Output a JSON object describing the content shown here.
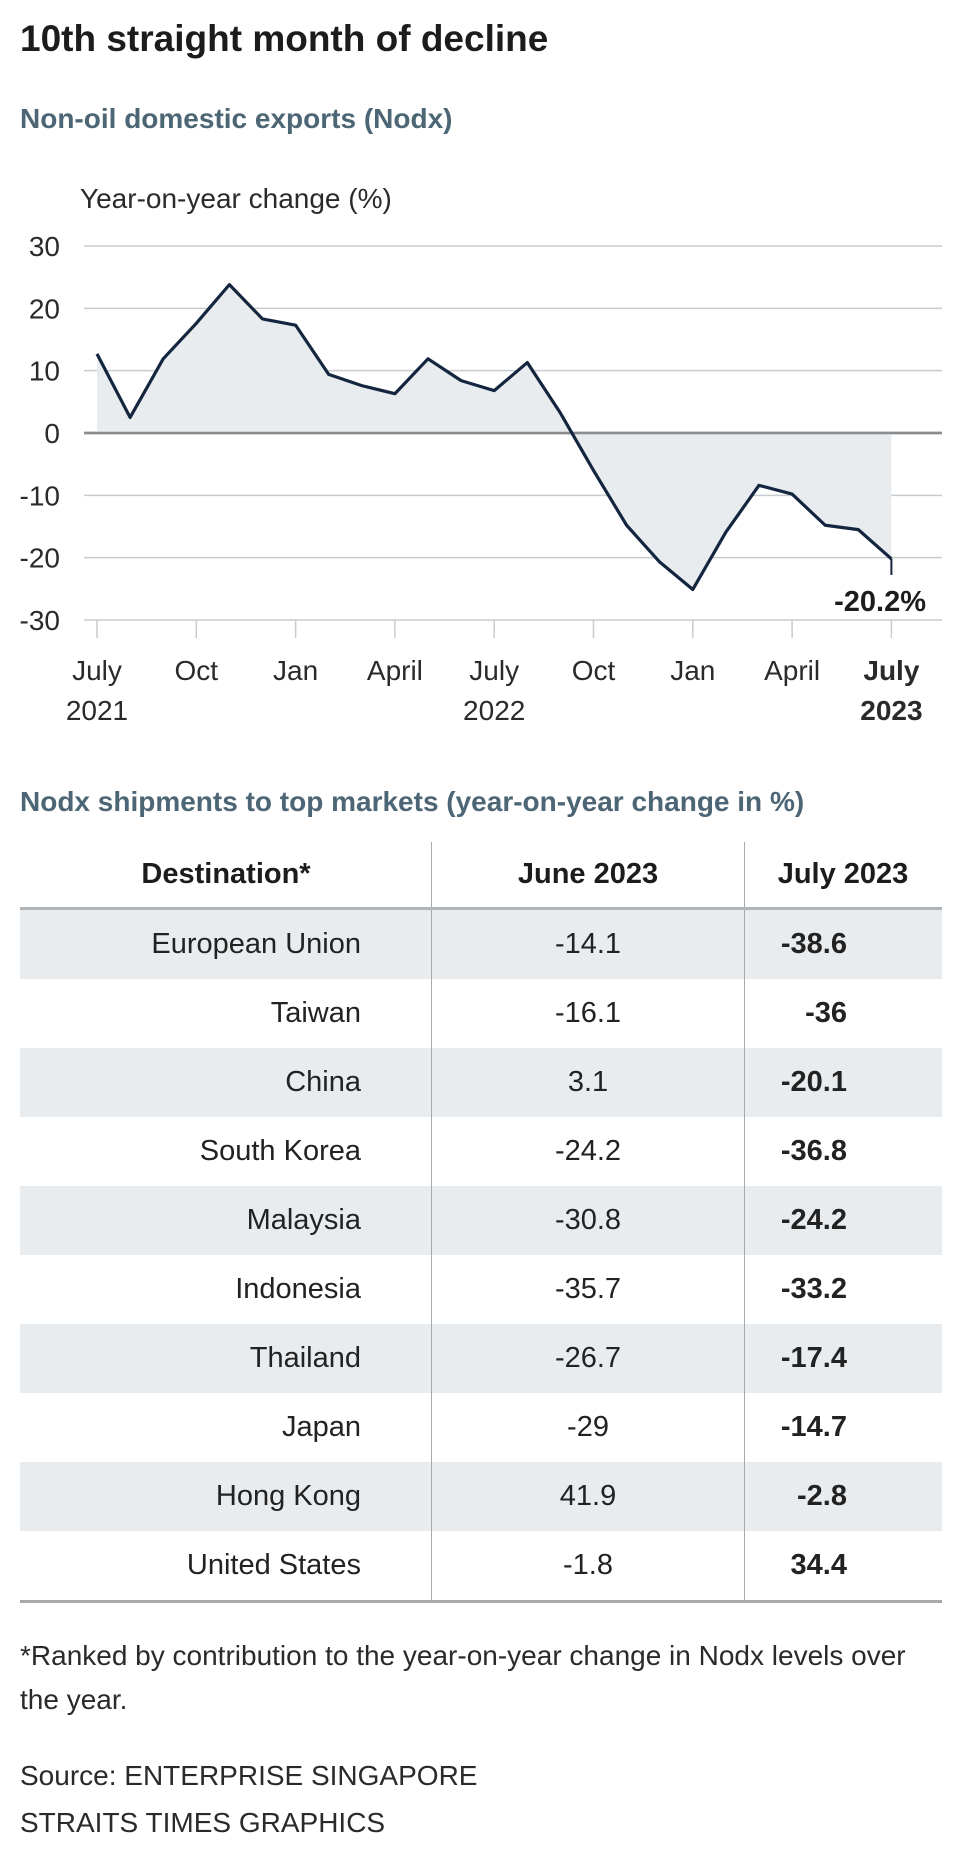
{
  "title": "10th straight month of decline",
  "subtitle": "Non-oil domestic exports (Nodx)",
  "chart_data": {
    "type": "area",
    "ylabel": "Year-on-year change (%)",
    "ylim": [
      -30,
      30
    ],
    "yticks": [
      "30",
      "20",
      "10",
      "0",
      "-10",
      "-20",
      "-30"
    ],
    "ytick_values": [
      30,
      20,
      10,
      0,
      -10,
      -20,
      -30
    ],
    "xticks": [
      {
        "month_index": 0,
        "line1": "July",
        "line2": "2021",
        "bold": false
      },
      {
        "month_index": 3,
        "line1": "Oct",
        "line2": "",
        "bold": false
      },
      {
        "month_index": 6,
        "line1": "Jan",
        "line2": "",
        "bold": false
      },
      {
        "month_index": 9,
        "line1": "April",
        "line2": "",
        "bold": false
      },
      {
        "month_index": 12,
        "line1": "July",
        "line2": "2022",
        "bold": false
      },
      {
        "month_index": 15,
        "line1": "Oct",
        "line2": "",
        "bold": false
      },
      {
        "month_index": 18,
        "line1": "Jan",
        "line2": "",
        "bold": false
      },
      {
        "month_index": 21,
        "line1": "April",
        "line2": "",
        "bold": false
      },
      {
        "month_index": 24,
        "line1": "July",
        "line2": "2023",
        "bold": true
      }
    ],
    "series": [
      {
        "name": "Nodx year-on-year change (%)",
        "values": [
          12.7,
          2.5,
          11.9,
          17.6,
          23.8,
          18.3,
          17.3,
          9.4,
          7.6,
          6.3,
          11.9,
          8.4,
          6.8,
          11.3,
          3.2,
          -6.0,
          -14.8,
          -20.7,
          -25.1,
          -15.9,
          -8.4,
          -9.8,
          -14.8,
          -15.5,
          -20.2
        ]
      }
    ],
    "annotation": {
      "text": "-20.2%",
      "month_index": 24
    }
  },
  "table": {
    "title": "Nodx shipments to top markets (year-on-year change in %)",
    "headers": [
      "Destination*",
      "June 2023",
      "July 2023"
    ],
    "rows": [
      {
        "destination": "European Union",
        "june": "-14.1",
        "july": "-38.6"
      },
      {
        "destination": "Taiwan",
        "june": "-16.1",
        "july": "-36"
      },
      {
        "destination": "China",
        "june": "3.1",
        "july": "-20.1"
      },
      {
        "destination": "South Korea",
        "june": "-24.2",
        "july": "-36.8"
      },
      {
        "destination": "Malaysia",
        "june": "-30.8",
        "july": "-24.2"
      },
      {
        "destination": "Indonesia",
        "june": "-35.7",
        "july": "-33.2"
      },
      {
        "destination": "Thailand",
        "june": "-26.7",
        "july": "-17.4"
      },
      {
        "destination": "Japan",
        "june": "-29",
        "july": "-14.7"
      },
      {
        "destination": "Hong Kong",
        "june": "41.9",
        "july": "-2.8"
      },
      {
        "destination": "United States",
        "june": "-1.8",
        "july": "34.4"
      }
    ]
  },
  "footnote": "*Ranked by contribution to the year-on-year change in Nodx levels over the year.",
  "source": {
    "line1": "Source: ENTERPRISE SINGAPORE",
    "line2": "STRAITS TIMES GRAPHICS"
  },
  "colors": {
    "line": "#14263f",
    "area": "#e9ecee",
    "grid": "#c9cccf",
    "zero": "#8a8e91",
    "heading_accent": "#4d6675"
  }
}
